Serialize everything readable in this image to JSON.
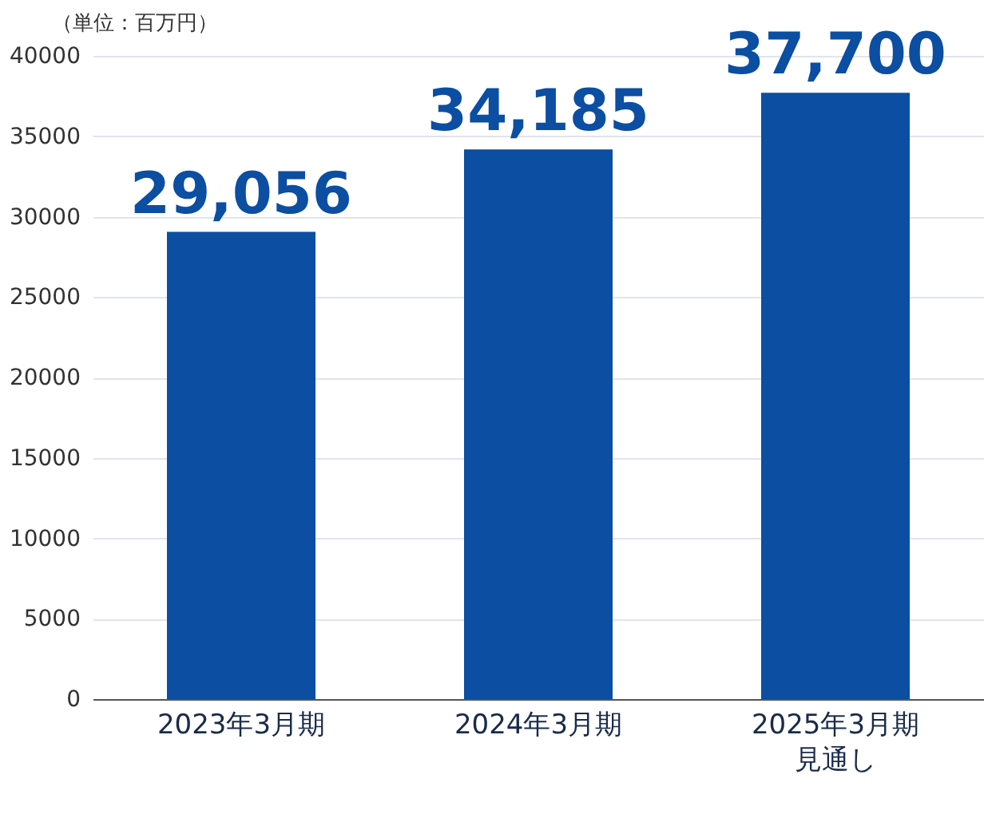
{
  "chart_data": {
    "type": "bar",
    "ylabel": "（単位：百万円）",
    "categories": [
      "2023年3月期",
      "2024年3月期",
      "2025年3月期見通し"
    ],
    "values": [
      29056,
      34185,
      37700
    ],
    "color": "#0b4ea2",
    "ylim": [
      0,
      40000
    ],
    "yticks": [
      0,
      5000,
      10000,
      15000,
      20000,
      25000,
      30000,
      35000,
      40000
    ],
    "grid": "y",
    "value_labels": [
      "29,056",
      "34,185",
      "37,700"
    ]
  }
}
